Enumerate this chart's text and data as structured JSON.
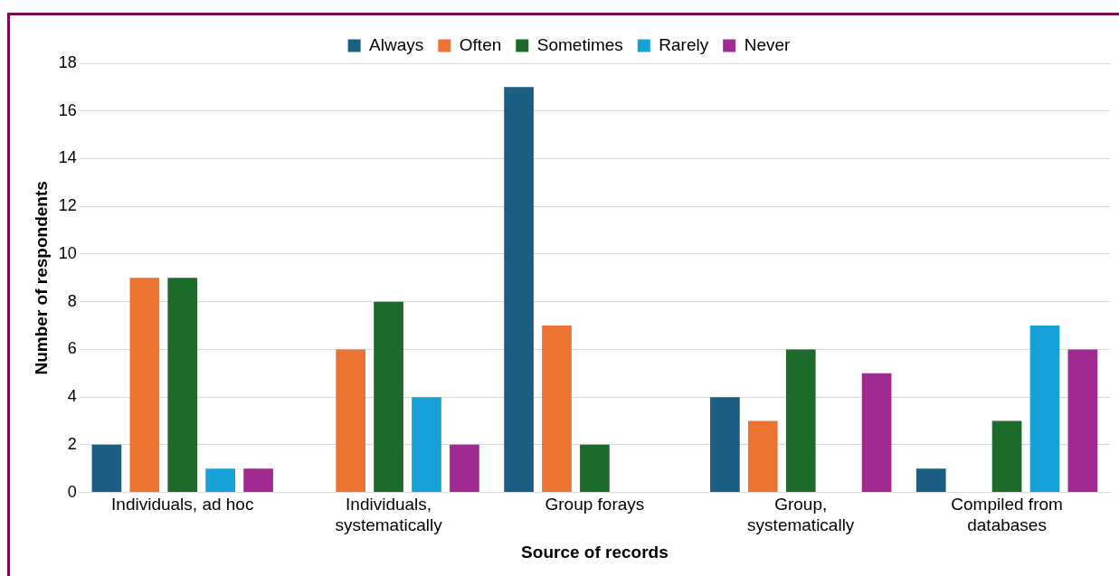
{
  "chart_data": {
    "type": "bar",
    "xlabel": "Source of records",
    "ylabel": "Number of respondents",
    "categories": [
      "Individuals, ad hoc",
      "Individuals, systematically",
      "Group forays",
      "Group, systematically",
      "Compiled from databases"
    ],
    "series": [
      {
        "name": "Always",
        "color": "#1b5f83",
        "values": [
          2,
          0,
          17,
          4,
          1
        ]
      },
      {
        "name": "Often",
        "color": "#ec7432",
        "values": [
          9,
          6,
          7,
          3,
          0
        ]
      },
      {
        "name": "Sometimes",
        "color": "#1c6b2b",
        "values": [
          9,
          8,
          2,
          6,
          3
        ]
      },
      {
        "name": "Rarely",
        "color": "#17a1d9",
        "values": [
          1,
          4,
          0,
          0,
          7
        ]
      },
      {
        "name": "Never",
        "color": "#a02a91",
        "values": [
          1,
          2,
          0,
          5,
          6
        ]
      }
    ],
    "ylim": [
      0,
      18
    ],
    "yticks": [
      0,
      2,
      4,
      6,
      8,
      10,
      12,
      14,
      16,
      18
    ],
    "grid": "y",
    "legend": "top"
  }
}
